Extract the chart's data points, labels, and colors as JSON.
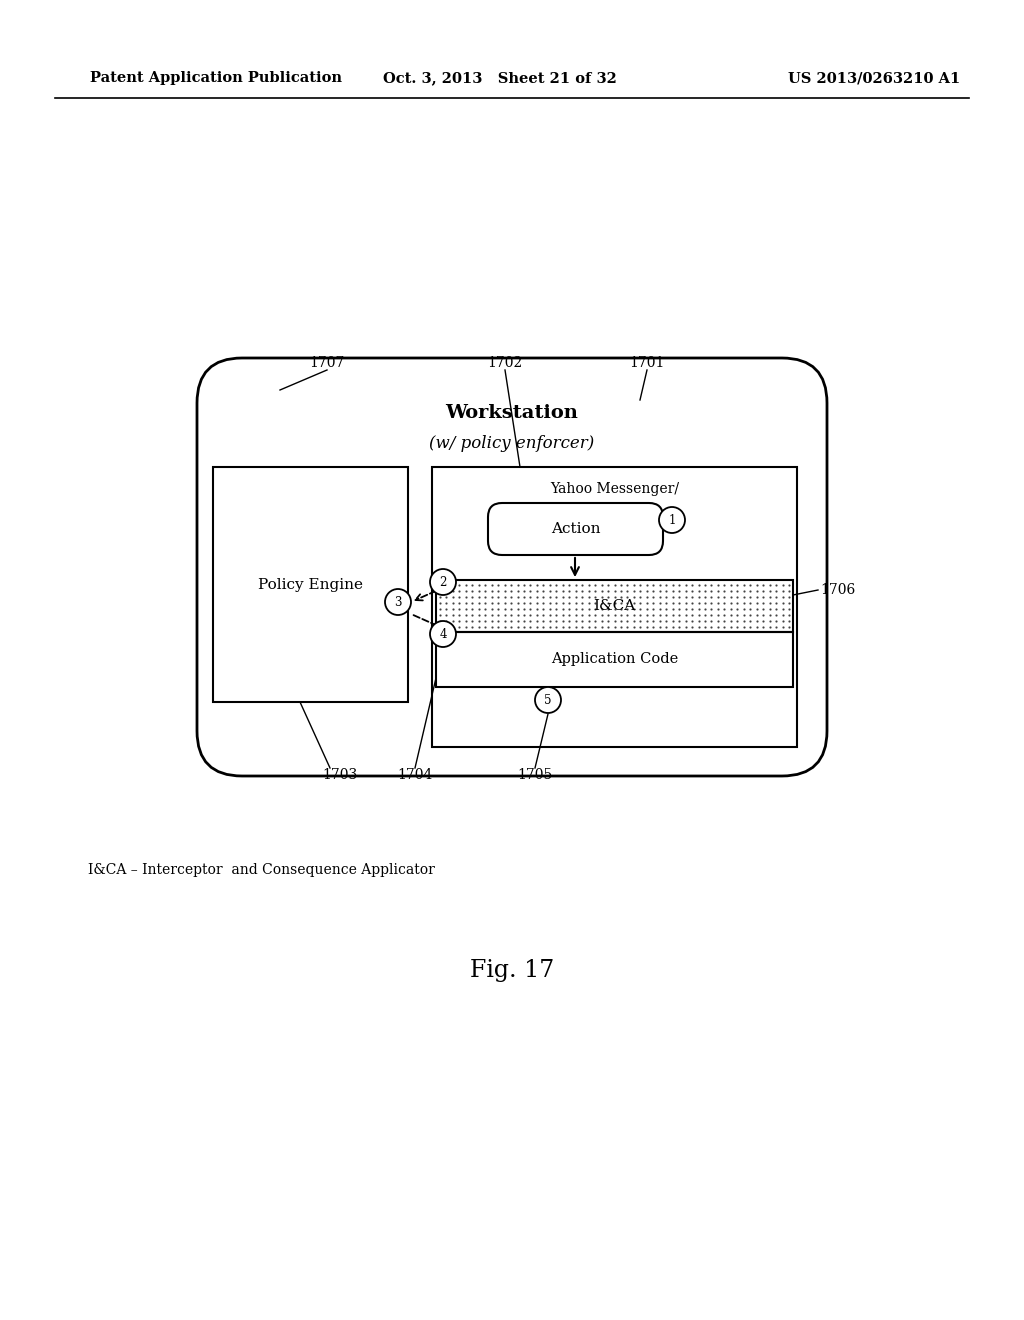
{
  "bg_color": "#ffffff",
  "header_left": "Patent Application Publication",
  "header_mid": "Oct. 3, 2013   Sheet 21 of 32",
  "header_right": "US 2013/0263210 A1",
  "fig_label": "Fig. 17",
  "legend_text": "I&CA – Interceptor  and Consequence Applicator",
  "workstation_title": "Workstation",
  "workstation_subtitle": "(w/ policy enforcer)",
  "policy_engine_label": "Policy Engine",
  "yahoo_label": "Yahoo Messenger/",
  "action_label": "Action",
  "ieca_label": "I&CA",
  "appcode_label": "Application Code"
}
